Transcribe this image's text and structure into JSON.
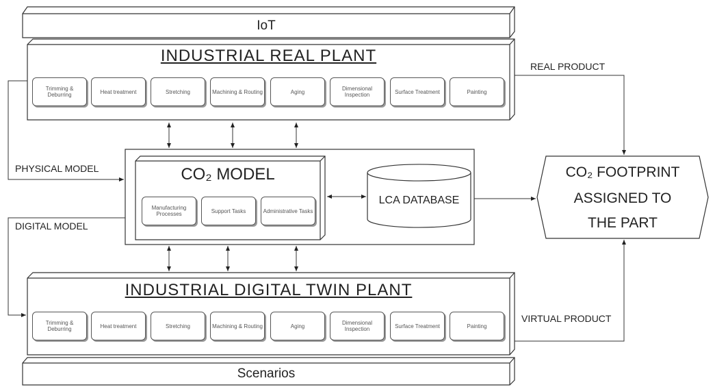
{
  "top_bar": "IoT",
  "bottom_bar": "Scenarios",
  "real_plant": {
    "title": "INDUSTRIAL REAL PLANT",
    "steps": [
      "Trimming & Deburring",
      "Heat treatment",
      "Stretching",
      "Machining & Routing",
      "Aging",
      "Dimensional Inspection",
      "Surface Treatment",
      "Painting"
    ]
  },
  "digital_plant": {
    "title": "INDUSTRIAL DIGITAL TWIN PLANT",
    "steps": [
      "Trimming & Deburring",
      "Heat treatment",
      "Stretching",
      "Machining & Routing",
      "Aging",
      "Dimensional Inspection",
      "Surface Treatment",
      "Painting"
    ]
  },
  "co2_model": {
    "title": "CO₂ MODEL",
    "tasks": [
      "Manufacturing Processes",
      "Support Tasks",
      "Administrative Tasks"
    ]
  },
  "database": "LCA DATABASE",
  "output": [
    "CO₂ FOOTPRINT",
    "ASSIGNED TO",
    "THE PART"
  ],
  "flows": {
    "real_product": "REAL PRODUCT",
    "physical_model": "PHYSICAL MODEL",
    "digital_model": "DIGITAL MODEL",
    "virtual_product": "VIRTUAL PRODUCT"
  }
}
